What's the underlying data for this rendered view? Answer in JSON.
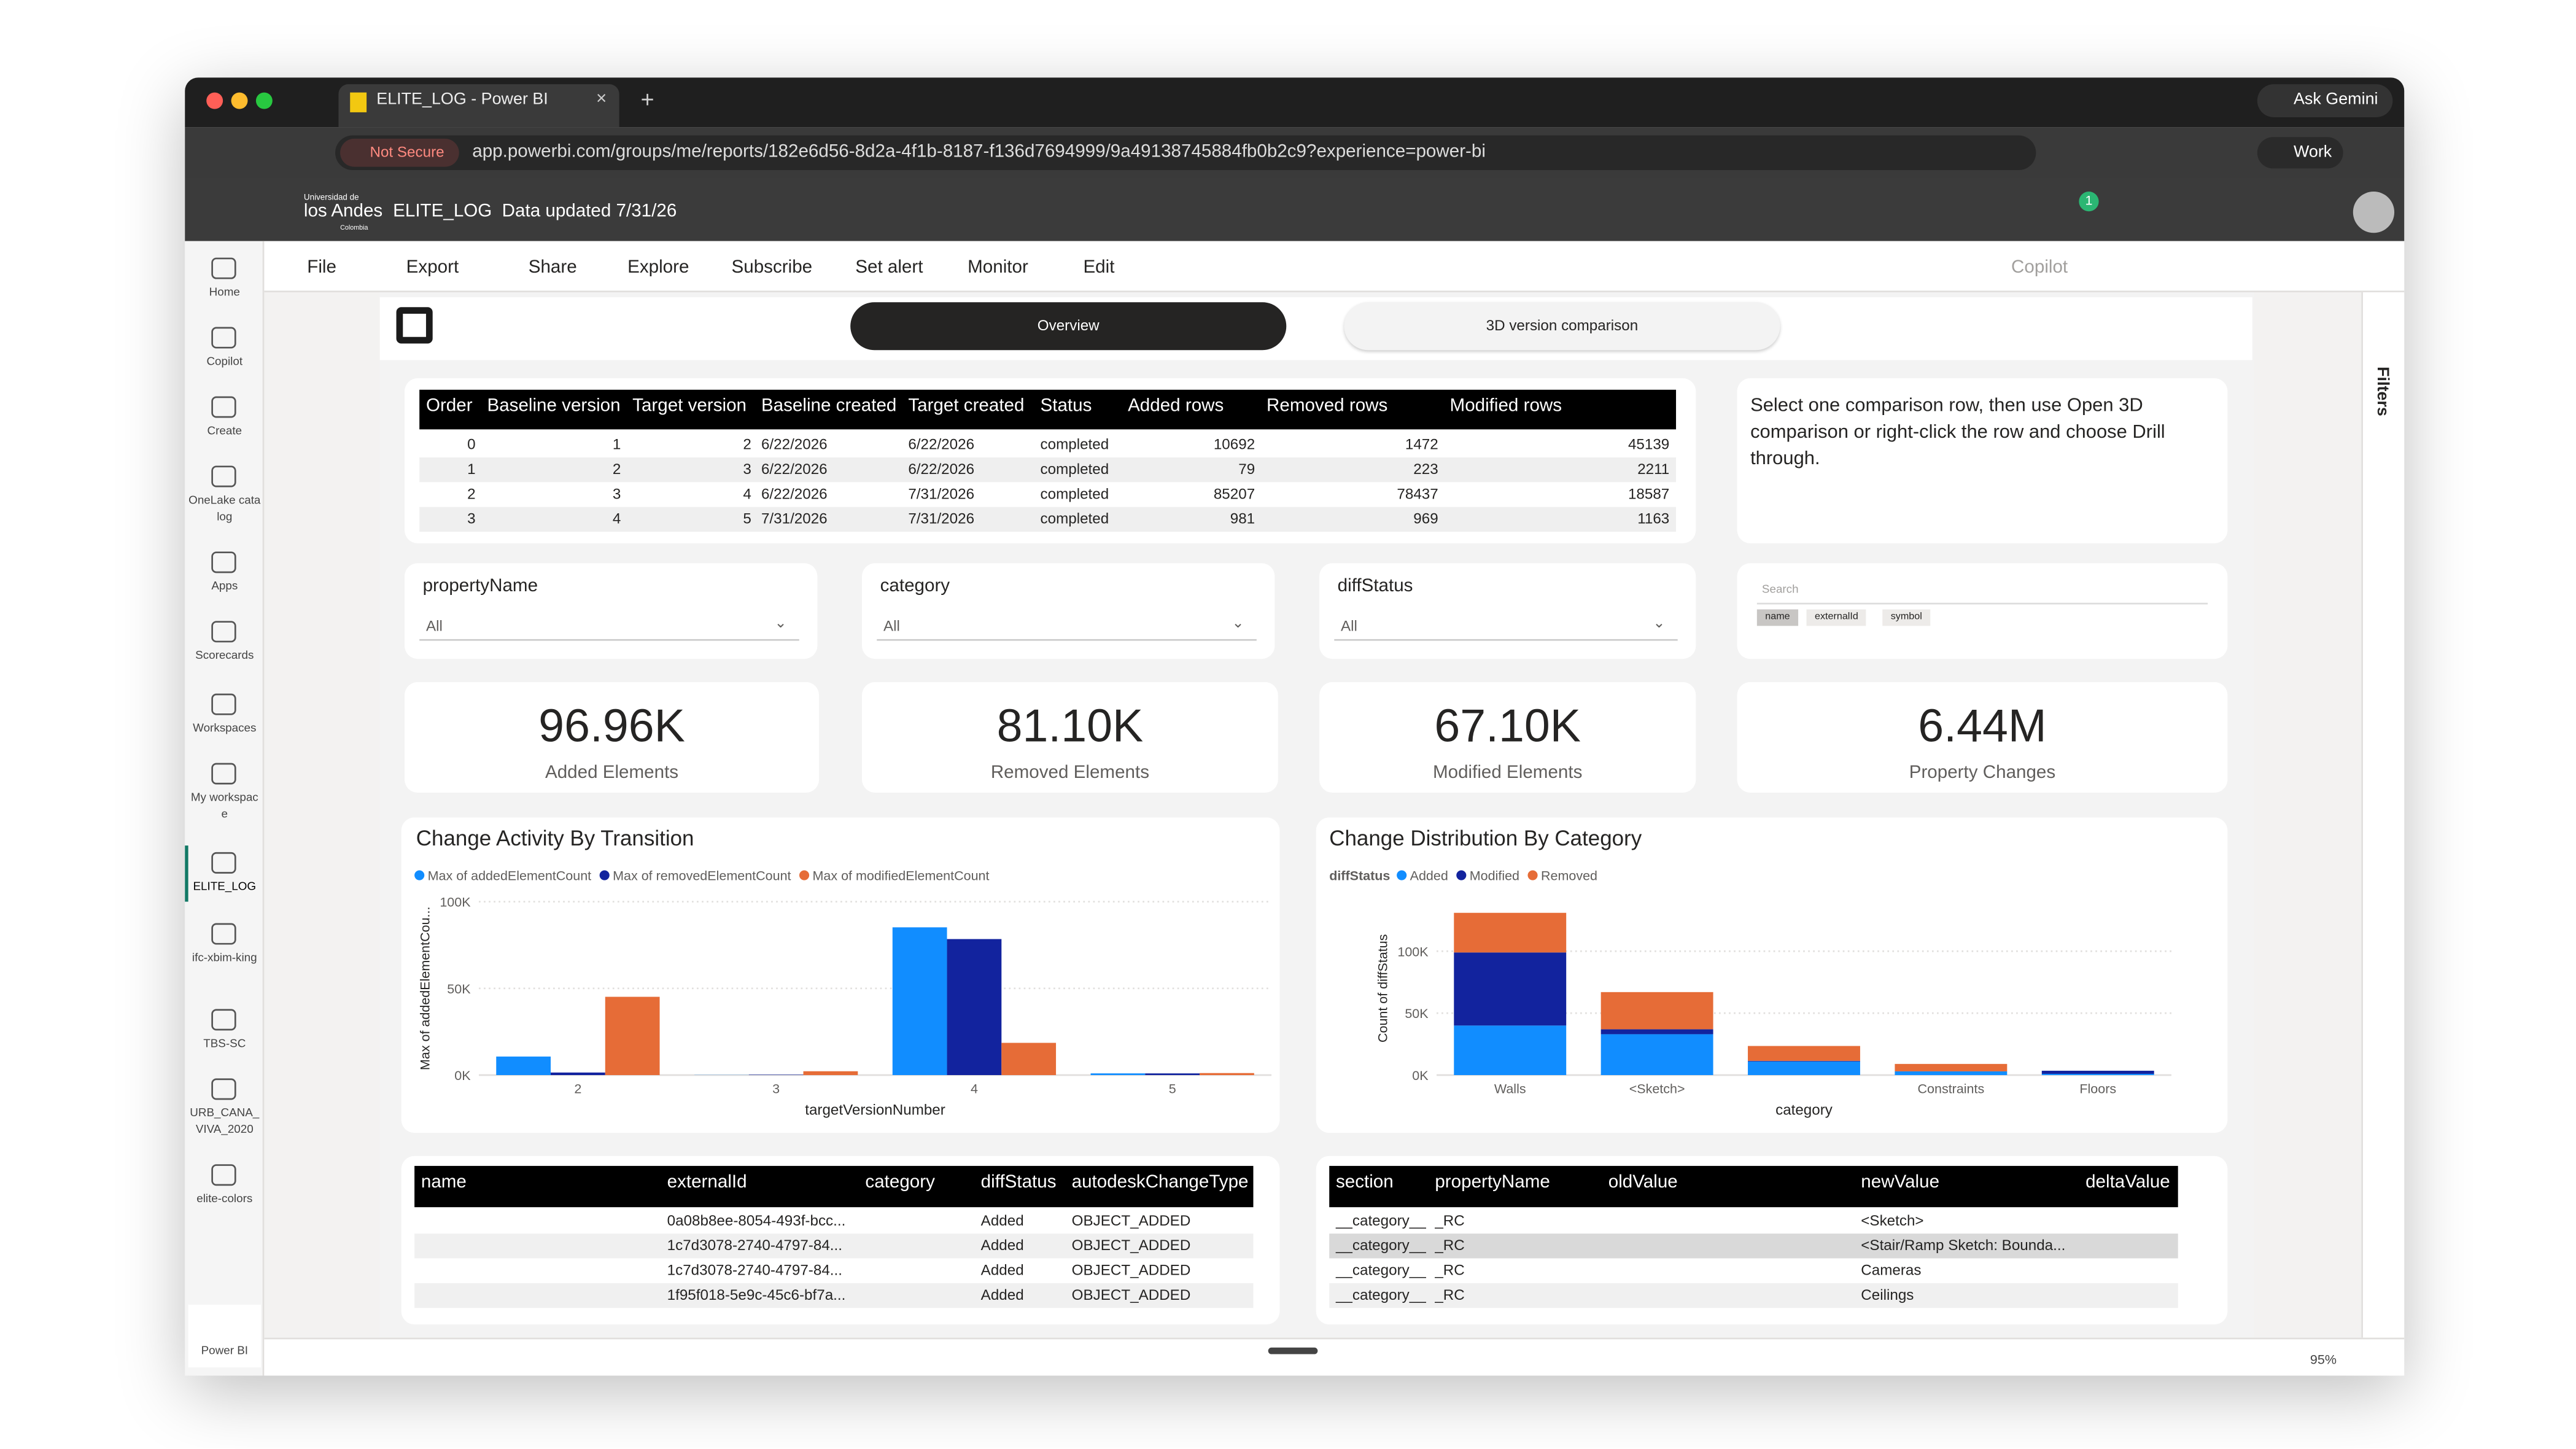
{
  "browser": {
    "tab_title": "ELITE_LOG - Power BI",
    "gemini": "Ask Gemini",
    "security": "Not Secure",
    "url": "app.powerbi.com/groups/me/reports/182e6d56-8d2a-4f1b-8187-f136d7694999/9a49138745884fb0b2c9?experience=power-bi",
    "profile": "Work"
  },
  "header": {
    "org_line1": "Universidad de",
    "org_line2": "los Andes",
    "org_line3": "Colombia",
    "report": "ELITE_LOG",
    "updated": "Data updated 7/31/26",
    "notifications": 1
  },
  "sidebar": [
    "Home",
    "Copilot",
    "Create",
    "OneLake catalog",
    "Apps",
    "Scorecards",
    "Workspaces",
    "My workspace",
    "ELITE_LOG",
    "ifc-xbim-king",
    "TBS-SC",
    "URB_CANA_VIVA_2020",
    "elite-colors"
  ],
  "sidebar_footer": "Power BI",
  "toolbar": [
    "File",
    "Export",
    "Share",
    "Explore",
    "Subscribe",
    "Set alert",
    "Monitor",
    "Edit"
  ],
  "copilot": "Copilot",
  "tabs": [
    "Overview",
    "3D version comparison"
  ],
  "comparison_table": {
    "columns": [
      "Order",
      "Baseline version",
      "Target version",
      "Baseline created",
      "Target created",
      "Status",
      "Added rows",
      "Removed rows",
      "Modified rows"
    ],
    "rows": [
      [
        0,
        1,
        2,
        "6/22/2026",
        "6/22/2026",
        "completed",
        10692,
        1472,
        45139
      ],
      [
        1,
        2,
        3,
        "6/22/2026",
        "6/22/2026",
        "completed",
        79,
        223,
        2211
      ],
      [
        2,
        3,
        4,
        "6/22/2026",
        "7/31/2026",
        "completed",
        85207,
        78437,
        18587
      ],
      [
        3,
        4,
        5,
        "7/31/2026",
        "7/31/2026",
        "completed",
        981,
        969,
        1163
      ]
    ]
  },
  "instructions": "Select one comparison row, then use Open 3D comparison or right-click the row and choose Drill through.",
  "slicers": [
    {
      "label": "propertyName",
      "value": "All"
    },
    {
      "label": "category",
      "value": "All"
    },
    {
      "label": "diffStatus",
      "value": "All"
    }
  ],
  "search": {
    "placeholder": "Search",
    "chips": [
      "name",
      "externalId",
      "symbol"
    ]
  },
  "kpis": [
    {
      "value": "96.96K",
      "label": "Added Elements"
    },
    {
      "value": "81.10K",
      "label": "Removed Elements"
    },
    {
      "value": "67.10K",
      "label": "Modified Elements"
    },
    {
      "value": "6.44M",
      "label": "Property Changes"
    }
  ],
  "charts": [
    {
      "type": "bar",
      "title": "Change Activity By Transition",
      "xlabel": "targetVersionNumber",
      "ylabel": "Max of addedElementCou...",
      "categories": [
        "2",
        "3",
        "4",
        "5"
      ],
      "series": [
        {
          "name": "Max of addedElementCount",
          "color": "#118dff",
          "values": [
            10692,
            79,
            85207,
            981
          ]
        },
        {
          "name": "Max of removedElementCount",
          "color": "#12239e",
          "values": [
            1472,
            223,
            78437,
            969
          ]
        },
        {
          "name": "Max of modifiedElementCount",
          "color": "#e66c37",
          "values": [
            45139,
            2211,
            18587,
            1163
          ]
        }
      ],
      "ylim": [
        0,
        100000
      ],
      "yticks": [
        {
          "value": 0,
          "label": "0K"
        },
        {
          "value": 50000,
          "label": "50K"
        },
        {
          "value": 100000,
          "label": "100K"
        }
      ],
      "grid": true
    },
    {
      "type": "stacked_bar",
      "title": "Change Distribution By Category",
      "legend_title": "diffStatus",
      "xlabel": "category",
      "ylabel": "Count of diffStatus",
      "categories": [
        "Walls",
        "<Sketch>",
        null,
        "Constraints",
        "Floors"
      ],
      "series": [
        {
          "name": "Added",
          "color": "#118dff",
          "values": [
            40000,
            33000,
            11000,
            3000,
            1000
          ]
        },
        {
          "name": "Modified",
          "color": "#12239e",
          "values": [
            59000,
            4000,
            500,
            0,
            2500
          ]
        },
        {
          "name": "Removed",
          "color": "#e66c37",
          "values": [
            32000,
            30000,
            12000,
            6000,
            0
          ]
        }
      ],
      "ylim": [
        0,
        140000
      ],
      "yticks": [
        {
          "value": 0,
          "label": "0K"
        },
        {
          "value": 50000,
          "label": "50K"
        },
        {
          "value": 100000,
          "label": "100K"
        }
      ],
      "grid": true
    }
  ],
  "elements_table": {
    "columns": [
      "name",
      "externalId",
      "category",
      "diffStatus",
      "autodeskChangeType"
    ],
    "rows": [
      [
        null,
        "0a08b8ee-8054-493f-bcc...",
        null,
        "Added",
        "OBJECT_ADDED"
      ],
      [
        null,
        "1c7d3078-2740-4797-84...",
        null,
        "Added",
        "OBJECT_ADDED"
      ],
      [
        null,
        "1c7d3078-2740-4797-84...",
        null,
        "Added",
        "OBJECT_ADDED"
      ],
      [
        null,
        "1f95f018-5e9c-45c6-bf7a...",
        null,
        "Added",
        "OBJECT_ADDED"
      ]
    ]
  },
  "properties_table": {
    "columns": [
      "section",
      "propertyName",
      "oldValue",
      "newValue",
      "deltaValue"
    ],
    "rows": [
      [
        "__category__",
        "_RC",
        null,
        "<Sketch>",
        null
      ],
      [
        "__category__",
        "_RC",
        null,
        "<Stair/Ramp Sketch: Bounda...",
        null
      ],
      [
        "__category__",
        "_RC",
        null,
        "Cameras",
        null
      ],
      [
        "__category__",
        "_RC",
        null,
        "Ceilings",
        null
      ]
    ]
  },
  "filters": "Filters",
  "zoom": "95%"
}
